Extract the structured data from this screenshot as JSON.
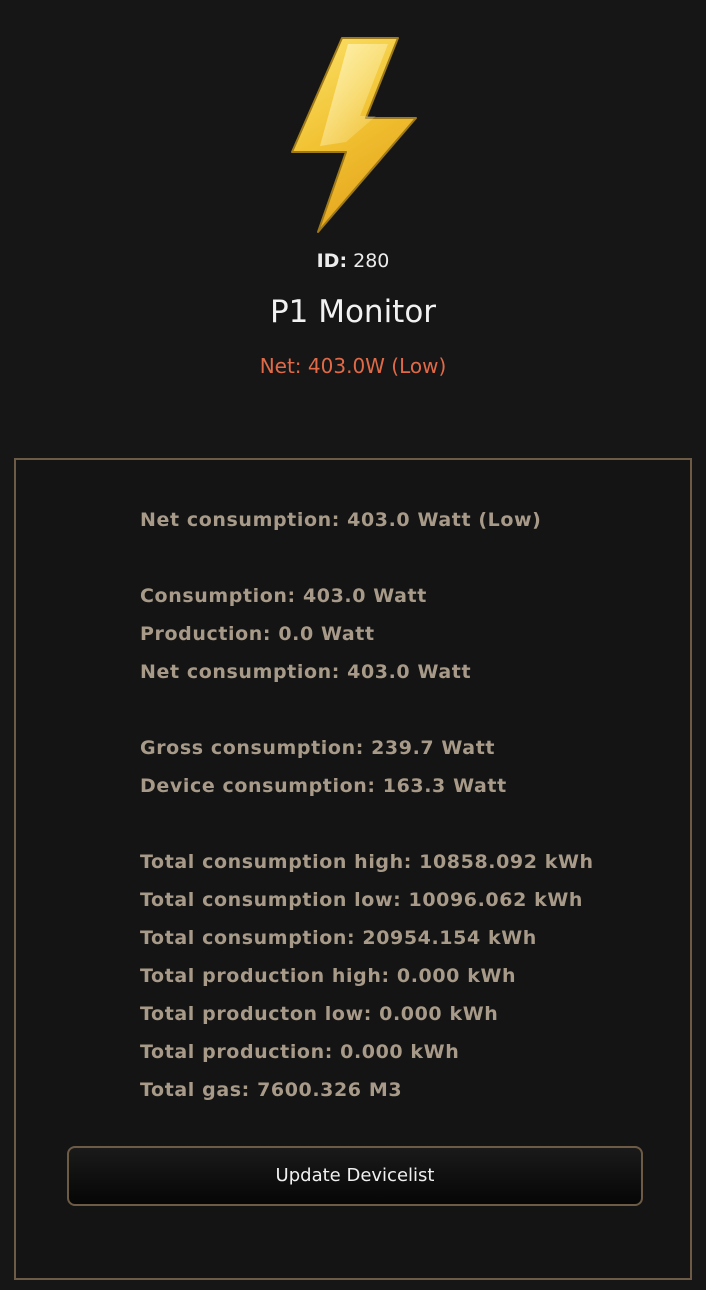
{
  "device": {
    "id_label": "ID:",
    "id_value": "280",
    "title": "P1 Monitor",
    "net_status": "Net: 403.0W (Low)",
    "icon": "lightning-bolt-icon"
  },
  "details": {
    "net_consumption_low": "Net consumption: 403.0 Watt (Low)",
    "consumption": "Consumption: 403.0 Watt",
    "production": "Production: 0.0 Watt",
    "net_consumption": "Net consumption: 403.0 Watt",
    "gross_consumption": "Gross consumption: 239.7 Watt",
    "device_consumption": "Device consumption: 163.3 Watt",
    "total_consumption_high": "Total consumption high: 10858.092 kWh",
    "total_consumption_low": "Total consumption low: 10096.062 kWh",
    "total_consumption": "Total consumption: 20954.154 kWh",
    "total_production_high": "Total production high: 0.000 kWh",
    "total_production_low": "Total producton low: 0.000 kWh",
    "total_production": "Total production: 0.000 kWh",
    "total_gas": "Total gas: 7600.326 M3"
  },
  "actions": {
    "update_label": "Update Devicelist"
  },
  "colors": {
    "background": "#161616",
    "accent_net": "#e06a47",
    "detail_text": "#a89a88",
    "border": "#6e5b45",
    "bolt_top": "#f7d84a",
    "bolt_bottom": "#e7a51c"
  }
}
